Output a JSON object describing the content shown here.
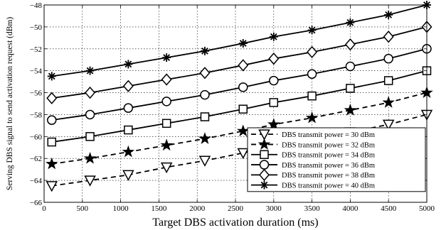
{
  "chart_data": {
    "type": "line",
    "title": "",
    "xlabel": "Target DBS activation duration (ms)",
    "ylabel": "Serving DBS signal to send activation request (dBm)",
    "x": [
      100,
      600,
      1100,
      1600,
      2100,
      2600,
      3000,
      3500,
      4000,
      4500,
      5000
    ],
    "xlim": [
      0,
      5000
    ],
    "ylim": [
      -66,
      -48
    ],
    "xticks": [
      "0",
      "500",
      "1000",
      "1500",
      "2000",
      "2500",
      "3000",
      "3500",
      "4000",
      "4500",
      "5000"
    ],
    "yticks": [
      "−66",
      "−64",
      "−62",
      "−60",
      "−58",
      "−56",
      "−54",
      "−52",
      "−50",
      "−48"
    ],
    "grid": true,
    "legend_position": "bottom-right",
    "series": [
      {
        "name": "DBS transmit power = 30 dBm",
        "marker": "triangle-down",
        "line": "dashed",
        "values": [
          -64.5,
          -64.0,
          -63.5,
          -62.8,
          -62.2,
          -61.5,
          -60.9,
          -60.3,
          -59.6,
          -58.9,
          -58.0
        ]
      },
      {
        "name": "DBS transmit power = 32 dBm",
        "marker": "star",
        "line": "dashed",
        "values": [
          -62.5,
          -62.0,
          -61.4,
          -60.8,
          -60.2,
          -59.5,
          -58.9,
          -58.3,
          -57.6,
          -56.9,
          -56.0
        ]
      },
      {
        "name": "DBS transmit power = 34 dBm",
        "marker": "square",
        "line": "solid",
        "values": [
          -60.5,
          -60.0,
          -59.4,
          -58.8,
          -58.2,
          -57.5,
          -56.9,
          -56.3,
          -55.6,
          -54.9,
          -54.0
        ]
      },
      {
        "name": "DBS transmit power = 36 dBm",
        "marker": "circle",
        "line": "solid",
        "values": [
          -58.5,
          -58.0,
          -57.4,
          -56.8,
          -56.2,
          -55.5,
          -54.9,
          -54.3,
          -53.6,
          -52.9,
          -52.0
        ]
      },
      {
        "name": "DBS transmit power = 38 dBm",
        "marker": "diamond",
        "line": "solid",
        "values": [
          -56.5,
          -56.0,
          -55.4,
          -54.8,
          -54.2,
          -53.5,
          -52.9,
          -52.3,
          -51.6,
          -50.9,
          -50.0
        ]
      },
      {
        "name": "DBS transmit power = 40 dBm",
        "marker": "asterisk",
        "line": "solid",
        "values": [
          -54.5,
          -54.0,
          -53.4,
          -52.8,
          -52.2,
          -51.5,
          -50.9,
          -50.3,
          -49.6,
          -48.9,
          -48.0
        ]
      }
    ]
  }
}
